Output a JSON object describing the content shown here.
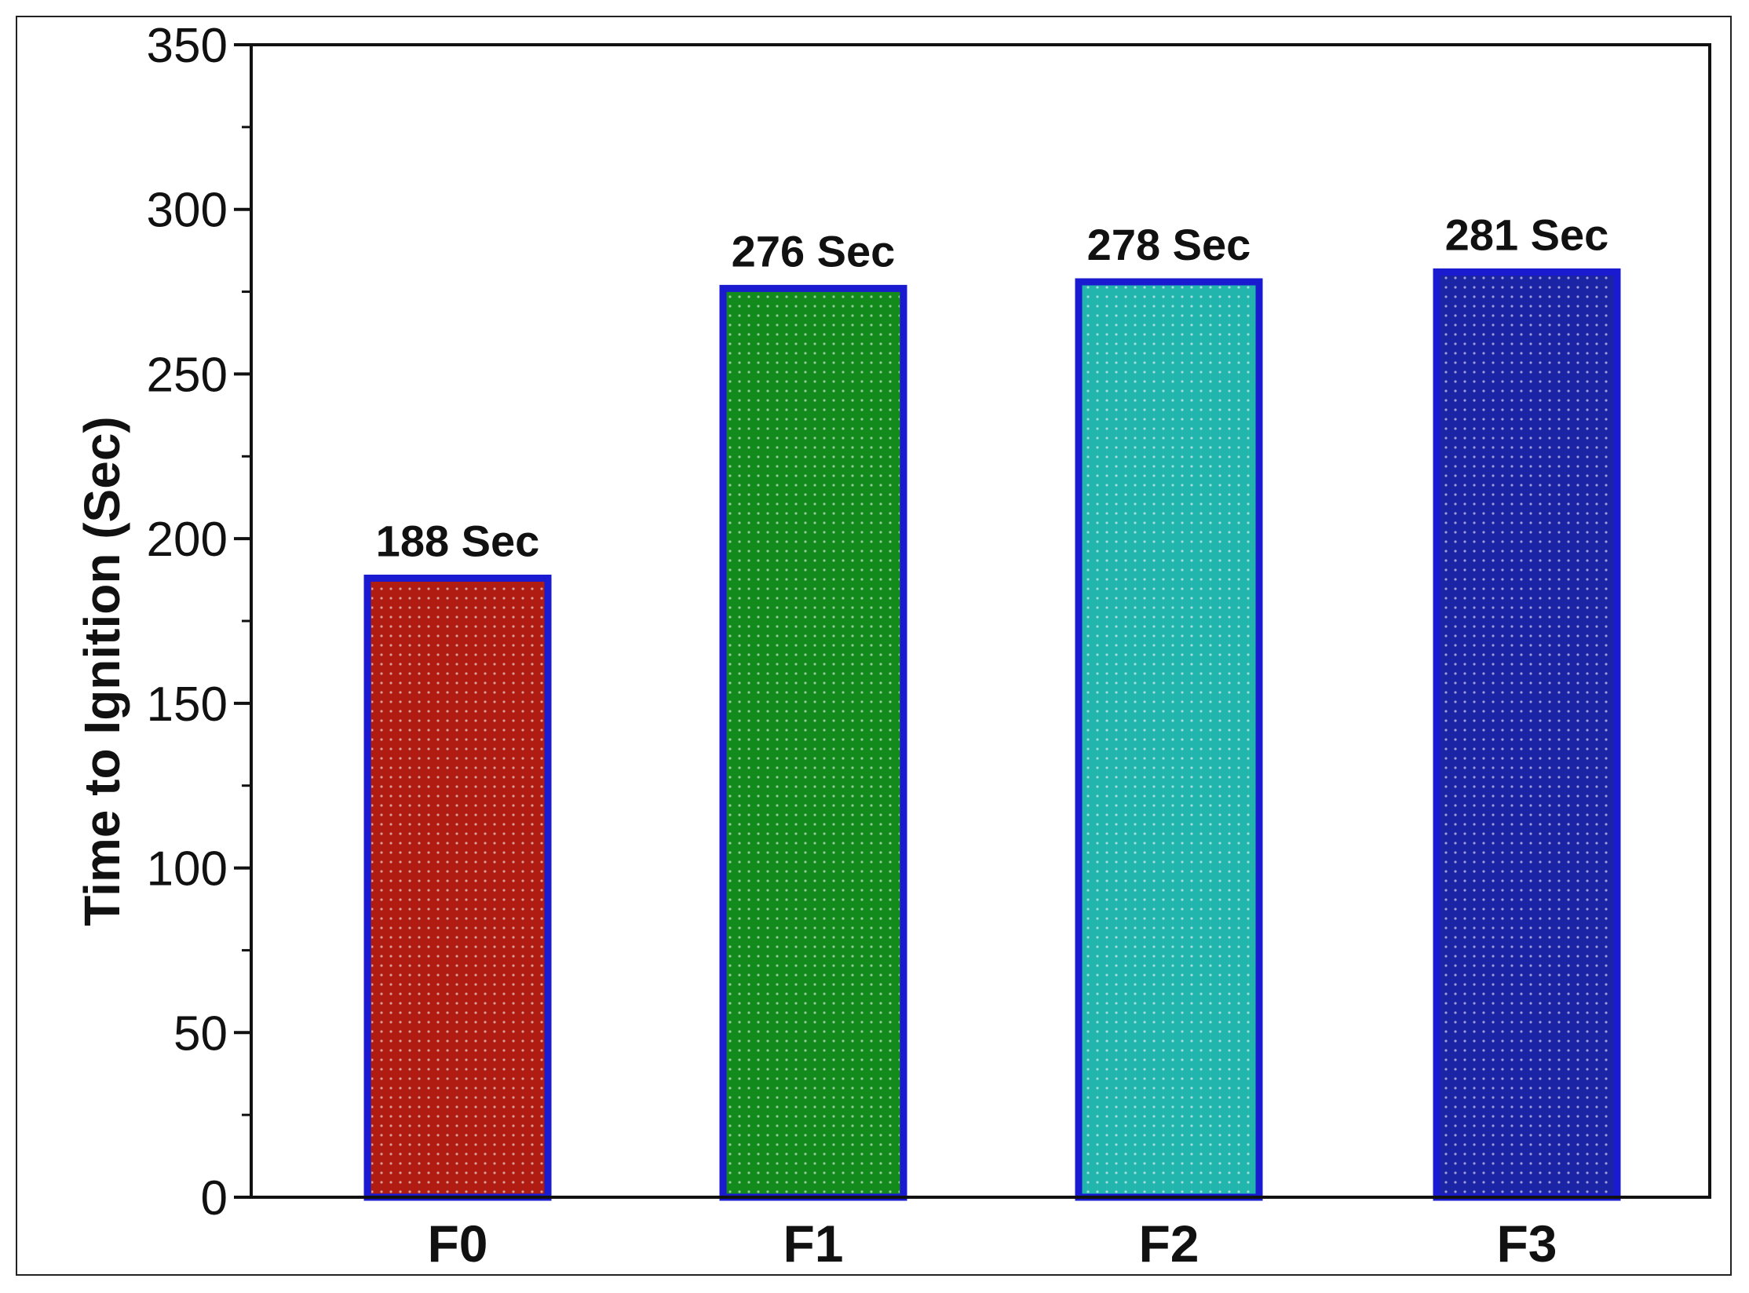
{
  "chart_data": {
    "type": "bar",
    "title": "",
    "xlabel": "",
    "ylabel": "Time to Ignition (Sec)",
    "categories": [
      "F0",
      "F1",
      "F2",
      "F3"
    ],
    "values": [
      188,
      276,
      278,
      281
    ],
    "data_labels": [
      "188 Sec",
      "276 Sec",
      "278 Sec",
      "281 Sec"
    ],
    "bar_colors": [
      "#b01c12",
      "#128a1c",
      "#22b5ae",
      "#1c24a6"
    ],
    "bar_border_color": "#1a1ad0",
    "ylim": [
      0,
      350
    ],
    "yticks": [
      0,
      50,
      100,
      150,
      200,
      250,
      300,
      350
    ],
    "ytick_labels": [
      "0",
      "50",
      "100",
      "150",
      "200",
      "250",
      "300",
      "350"
    ],
    "grid": false,
    "legend": "none"
  }
}
